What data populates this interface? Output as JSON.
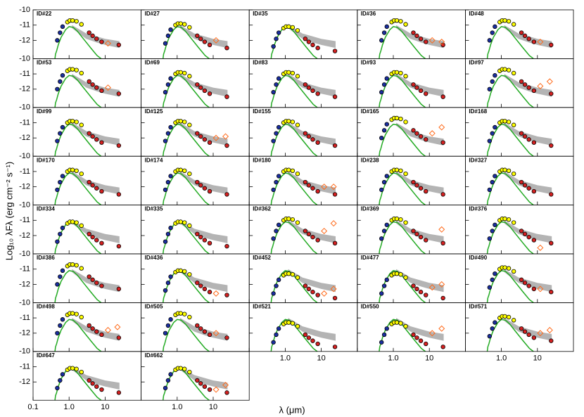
{
  "chart_data": {
    "type": "sed-grid",
    "x_label": "λ (μm)",
    "y_label": "Log₁₀ λFλ (erg cm⁻² s⁻¹)",
    "xlim": [
      0.1,
      100
    ],
    "ylim": [
      -13.2,
      -10
    ],
    "xticks": [
      0.1,
      {
        "value": 1,
        "label": "1.0"
      },
      10
    ],
    "yticks": [
      -10,
      -11,
      -12
    ],
    "xscale": "log",
    "bands": [
      0.47,
      0.56,
      0.66,
      0.9,
      1.05,
      1.25,
      1.6,
      2.2,
      3.6,
      4.5,
      5.8,
      8.0,
      24
    ],
    "band_colors": [
      "#1a2fa0",
      "#1a2fa0",
      "#1a2fa0",
      "#ffff00",
      "#ffff00",
      "#ffff00",
      "#ffff00",
      "#ffff00",
      "#d42020",
      "#d42020",
      "#d42020",
      "#d42020",
      "#d42020"
    ],
    "diamond_x": [
      12,
      22
    ],
    "diamond_color": "#ff6a1a",
    "model_x": [
      0.4,
      0.42,
      0.45,
      0.5,
      0.6,
      0.8,
      1.0,
      1.3,
      1.7,
      2.5,
      4,
      6,
      10
    ],
    "model_y": [
      -13.3,
      -12.9,
      -12.7,
      -12.3,
      -11.8,
      -11.3,
      -11.1,
      -11.15,
      -11.4,
      -11.9,
      -12.5,
      -13.0,
      -13.4
    ],
    "model_color": "#22aa22",
    "envelope_x": [
      1.2,
      2,
      3,
      6,
      10,
      25
    ],
    "envelope_high": [
      -11.0,
      -11.3,
      -11.55,
      -11.75,
      -11.9,
      -12.05
    ],
    "envelope_low": [
      -11.2,
      -11.6,
      -11.9,
      -12.15,
      -12.3,
      -12.5
    ],
    "envelope_color": "#b4b4b4",
    "panels": [
      {
        "label": "ID#22",
        "values": [
          -12.0,
          -11.5,
          -11.1,
          -10.8,
          -10.7,
          -10.7,
          -10.75,
          -10.95,
          -11.5,
          -11.7,
          -11.9,
          -12.1,
          -12.3
        ],
        "diamonds": [
          -12.2,
          null
        ]
      },
      {
        "label": "ID#27",
        "values": [
          -12.2,
          -11.7,
          -11.3,
          -11.0,
          -10.9,
          -10.9,
          -10.95,
          -11.15,
          -11.7,
          -11.9,
          -12.1,
          -12.3,
          -12.5
        ],
        "diamonds": [
          -12.0,
          null
        ]
      },
      {
        "label": "ID#35",
        "values": [
          -12.4,
          -11.9,
          -11.5,
          -11.2,
          -11.1,
          -11.1,
          -11.15,
          -11.35,
          -11.9,
          -12.1,
          -12.3,
          -12.5,
          -12.7
        ]
      },
      {
        "label": "ID#36",
        "values": [
          -12.0,
          -11.5,
          -11.1,
          -10.8,
          -10.7,
          -10.7,
          -10.75,
          -10.95,
          -11.5,
          -11.7,
          -11.9,
          -12.1,
          -12.3
        ],
        "diamonds": [
          -12.0,
          -12.1
        ]
      },
      {
        "label": "ID#48",
        "values": [
          -12.0,
          -11.5,
          -11.1,
          -10.8,
          -10.7,
          -10.7,
          -10.75,
          -10.95,
          -11.5,
          -11.7,
          -11.9,
          -12.1,
          -12.3
        ],
        "diamonds": [
          -12.1,
          null
        ]
      },
      {
        "label": "ID#53",
        "values": [
          -12.0,
          -11.5,
          -11.1,
          -10.8,
          -10.7,
          -10.7,
          -10.75,
          -10.95,
          -11.5,
          -11.7,
          -11.9,
          -12.1,
          -12.3
        ],
        "diamonds": [
          -11.9,
          null
        ]
      },
      {
        "label": "ID#69",
        "values": [
          -12.2,
          -11.7,
          -11.3,
          -11.0,
          -10.9,
          -10.9,
          -10.95,
          -11.15,
          -11.7,
          -11.9,
          -12.1,
          -12.3,
          -12.5
        ]
      },
      {
        "label": "ID#83",
        "values": [
          -12.2,
          -11.7,
          -11.3,
          -11.0,
          -10.9,
          -10.9,
          -10.95,
          -11.15,
          -11.7,
          -11.9,
          -12.1,
          -12.3,
          -12.5
        ]
      },
      {
        "label": "ID#93",
        "values": [
          -12.2,
          -11.7,
          -11.3,
          -11.0,
          -10.9,
          -10.9,
          -10.95,
          -11.15,
          -11.7,
          -11.9,
          -12.1,
          -12.3,
          -12.5
        ]
      },
      {
        "label": "ID#97",
        "values": [
          -12.0,
          -11.5,
          -11.1,
          -10.8,
          -10.7,
          -10.7,
          -10.75,
          -10.95,
          -11.5,
          -11.7,
          -11.9,
          -12.1,
          -12.3
        ],
        "diamonds": [
          -11.8,
          -11.5
        ]
      },
      {
        "label": "ID#99",
        "values": [
          -12.2,
          -11.7,
          -11.3,
          -11.0,
          -10.9,
          -10.9,
          -10.95,
          -11.15,
          -11.7,
          -11.9,
          -12.1,
          -12.3,
          -12.5
        ]
      },
      {
        "label": "ID#125",
        "values": [
          -12.2,
          -11.7,
          -11.3,
          -11.0,
          -10.9,
          -10.9,
          -10.95,
          -11.15,
          -11.7,
          -11.9,
          -12.1,
          -12.3,
          -12.5
        ],
        "diamonds": [
          -12.0,
          -11.9
        ]
      },
      {
        "label": "ID#155",
        "values": [
          -12.2,
          -11.7,
          -11.3,
          -11.0,
          -10.9,
          -10.9,
          -10.95,
          -11.15,
          -11.7,
          -11.9,
          -12.1,
          -12.3,
          -12.5
        ]
      },
      {
        "label": "ID#165",
        "values": [
          -12.0,
          -11.5,
          -11.1,
          -10.8,
          -10.7,
          -10.7,
          -10.75,
          -10.95,
          -11.5,
          -11.7,
          -11.9,
          -12.1,
          -12.3
        ],
        "diamonds": [
          -11.7,
          -11.3
        ]
      },
      {
        "label": "ID#168",
        "values": [
          -12.2,
          -11.7,
          -11.3,
          -11.0,
          -10.9,
          -10.9,
          -10.95,
          -11.15,
          -11.7,
          -11.9,
          -12.1,
          -12.3,
          -12.5
        ]
      },
      {
        "label": "ID#170",
        "values": [
          -12.2,
          -11.7,
          -11.3,
          -11.0,
          -10.9,
          -10.9,
          -10.95,
          -11.15,
          -11.7,
          -11.9,
          -12.1,
          -12.3,
          -12.5
        ]
      },
      {
        "label": "ID#174",
        "values": [
          -12.2,
          -11.7,
          -11.3,
          -11.0,
          -10.9,
          -10.9,
          -10.95,
          -11.15,
          -11.7,
          -11.9,
          -12.1,
          -12.3,
          -12.5
        ]
      },
      {
        "label": "ID#180",
        "values": [
          -12.2,
          -11.7,
          -11.3,
          -11.0,
          -10.9,
          -10.9,
          -10.95,
          -11.15,
          -11.7,
          -11.9,
          -12.1,
          -12.3,
          -12.5
        ],
        "diamonds": [
          -12.0,
          -12.0
        ]
      },
      {
        "label": "ID#238",
        "values": [
          -12.2,
          -11.7,
          -11.3,
          -11.0,
          -10.9,
          -10.9,
          -10.95,
          -11.15,
          -11.7,
          -11.9,
          -12.1,
          -12.3,
          -12.5
        ]
      },
      {
        "label": "ID#327",
        "values": [
          -12.2,
          -11.7,
          -11.3,
          -11.0,
          -10.9,
          -10.9,
          -10.95,
          -11.15,
          -11.7,
          -11.9,
          -12.1,
          -12.3,
          -12.5
        ]
      },
      {
        "label": "ID#334",
        "values": [
          -12.4,
          -11.9,
          -11.5,
          -11.2,
          -11.1,
          -11.1,
          -11.15,
          -11.35,
          -11.9,
          -12.1,
          -12.3,
          -12.5,
          -12.7
        ]
      },
      {
        "label": "ID#335",
        "values": [
          -12.4,
          -11.9,
          -11.5,
          -11.2,
          -11.1,
          -11.1,
          -11.15,
          -11.35,
          -11.9,
          -12.1,
          -12.3,
          -12.5,
          -12.7
        ]
      },
      {
        "label": "ID#362",
        "values": [
          -12.2,
          -11.7,
          -11.3,
          -11.0,
          -10.9,
          -10.9,
          -10.95,
          -11.15,
          -11.7,
          -11.9,
          -12.1,
          -12.3,
          -12.5
        ],
        "diamonds": [
          -11.7,
          -11.2
        ]
      },
      {
        "label": "ID#369",
        "values": [
          -12.2,
          -11.7,
          -11.3,
          -11.0,
          -10.9,
          -10.9,
          -10.95,
          -11.15,
          -11.7,
          -11.9,
          -12.1,
          -12.3,
          -12.5
        ],
        "diamonds": [
          null,
          -11.6
        ]
      },
      {
        "label": "ID#376",
        "values": [
          -12.2,
          -11.7,
          -11.3,
          -11.0,
          -10.9,
          -10.9,
          -10.95,
          -11.15,
          -11.7,
          -11.9,
          -12.1,
          -12.3,
          -12.5
        ],
        "diamonds": [
          -12.8,
          null
        ]
      },
      {
        "label": "ID#386",
        "values": [
          -12.0,
          -11.5,
          -11.1,
          -10.8,
          -10.7,
          -10.7,
          -10.75,
          -10.95,
          -11.5,
          -11.7,
          -11.9,
          -12.1,
          -12.3
        ]
      },
      {
        "label": "ID#436",
        "values": [
          -12.4,
          -11.9,
          -11.5,
          -11.2,
          -11.1,
          -11.1,
          -11.15,
          -11.35,
          -11.9,
          -12.1,
          -12.3,
          -12.5,
          -12.7
        ],
        "diamonds": [
          -12.6,
          null
        ]
      },
      {
        "label": "ID#452",
        "values": [
          -12.6,
          -12.1,
          -11.7,
          -11.4,
          -11.3,
          -11.3,
          -11.35,
          -11.55,
          -12.1,
          -12.3,
          -12.5,
          -12.7,
          -12.9
        ],
        "diamonds": [
          -12.6,
          -12.3
        ]
      },
      {
        "label": "ID#477",
        "values": [
          -12.6,
          -12.1,
          -11.7,
          -11.4,
          -11.3,
          -11.3,
          -11.35,
          -11.55,
          -12.1,
          -12.3,
          -12.5,
          -12.7,
          -12.9
        ],
        "diamonds": [
          -12.2,
          -12.0
        ]
      },
      {
        "label": "ID#490",
        "values": [
          -12.2,
          -11.7,
          -11.3,
          -11.0,
          -10.9,
          -10.9,
          -10.95,
          -11.15,
          -11.7,
          -11.9,
          -12.1,
          -12.3,
          -12.5
        ],
        "diamonds": [
          -12.3,
          null
        ]
      },
      {
        "label": "ID#498",
        "values": [
          -12.0,
          -11.5,
          -11.1,
          -10.8,
          -10.7,
          -10.7,
          -10.75,
          -10.95,
          -11.5,
          -11.7,
          -11.9,
          -12.1,
          -12.3
        ],
        "diamonds": [
          -11.8,
          -11.6
        ]
      },
      {
        "label": "ID#505",
        "values": [
          -12.0,
          -11.5,
          -11.1,
          -10.8,
          -10.7,
          -10.7,
          -10.75,
          -10.95,
          -11.5,
          -11.7,
          -11.9,
          -12.1,
          -12.3
        ],
        "diamonds": [
          -12.0,
          null
        ]
      },
      {
        "label": "ID#521",
        "values": [
          -12.6,
          -12.1,
          -11.7,
          -11.4,
          -11.3,
          -11.3,
          -11.35,
          -11.55,
          -12.1,
          -12.3,
          -12.5,
          -12.7,
          -12.9
        ]
      },
      {
        "label": "ID#550",
        "values": [
          -12.6,
          -12.1,
          -11.7,
          -11.4,
          -11.3,
          -11.3,
          -11.35,
          -11.55,
          -12.1,
          -12.3,
          -12.5,
          -12.7,
          -12.9
        ],
        "diamonds": [
          -12.0,
          -11.7
        ]
      },
      {
        "label": "ID#571",
        "values": [
          -12.2,
          -11.7,
          -11.3,
          -11.0,
          -10.9,
          -10.9,
          -10.95,
          -11.15,
          -11.7,
          -11.9,
          -12.1,
          -12.3,
          -12.5
        ],
        "diamonds": [
          -12.0,
          -11.8
        ]
      },
      {
        "label": "ID#647",
        "values": [
          -12.4,
          -11.9,
          -11.5,
          -11.2,
          -11.1,
          -11.1,
          -11.15,
          -11.35,
          -11.9,
          -12.1,
          -12.3,
          -12.5,
          -12.7
        ]
      },
      {
        "label": "ID#662",
        "values": [
          -12.4,
          -11.9,
          -11.5,
          -11.2,
          -11.1,
          -11.1,
          -11.15,
          -11.35,
          -11.9,
          -12.1,
          -12.3,
          -12.5,
          -12.7
        ],
        "diamonds": [
          -12.5,
          -12.2
        ]
      }
    ]
  }
}
